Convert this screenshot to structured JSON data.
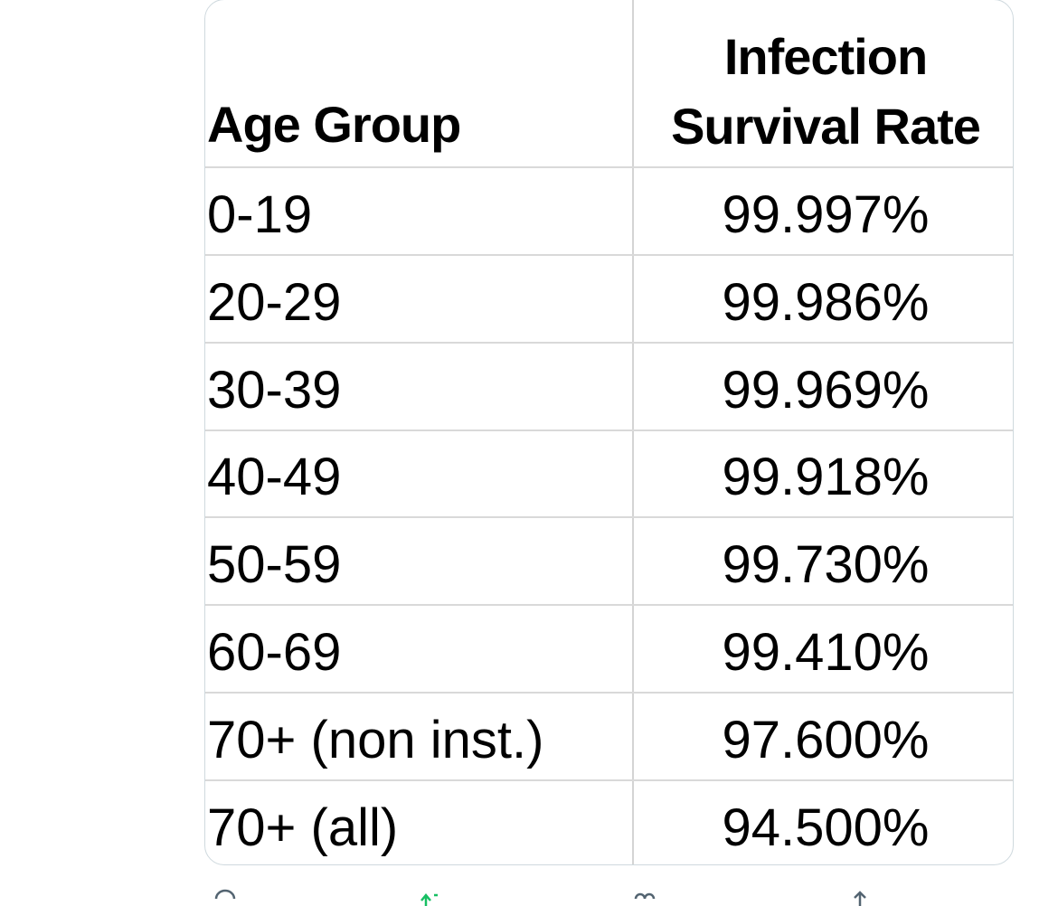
{
  "table": {
    "headers": [
      "Age Group",
      "Infection Survival Rate"
    ],
    "header_lines": [
      "Infection",
      "Survival Rate"
    ],
    "rows": [
      {
        "age": "0-19",
        "rate": "99.997%"
      },
      {
        "age": "20-29",
        "rate": "99.986%"
      },
      {
        "age": "30-39",
        "rate": "99.969%"
      },
      {
        "age": "40-49",
        "rate": "99.918%"
      },
      {
        "age": "50-59",
        "rate": "99.730%"
      },
      {
        "age": "60-69",
        "rate": "99.410%"
      },
      {
        "age": "70+ (non inst.)",
        "rate": "97.600%"
      },
      {
        "age": "70+ (all)",
        "rate": "94.500%"
      }
    ]
  },
  "actions": {
    "icons": [
      "reply-icon",
      "retweet-icon",
      "like-icon",
      "share-icon"
    ],
    "retweet_color": "#17bf63",
    "icon_color": "#536471"
  }
}
